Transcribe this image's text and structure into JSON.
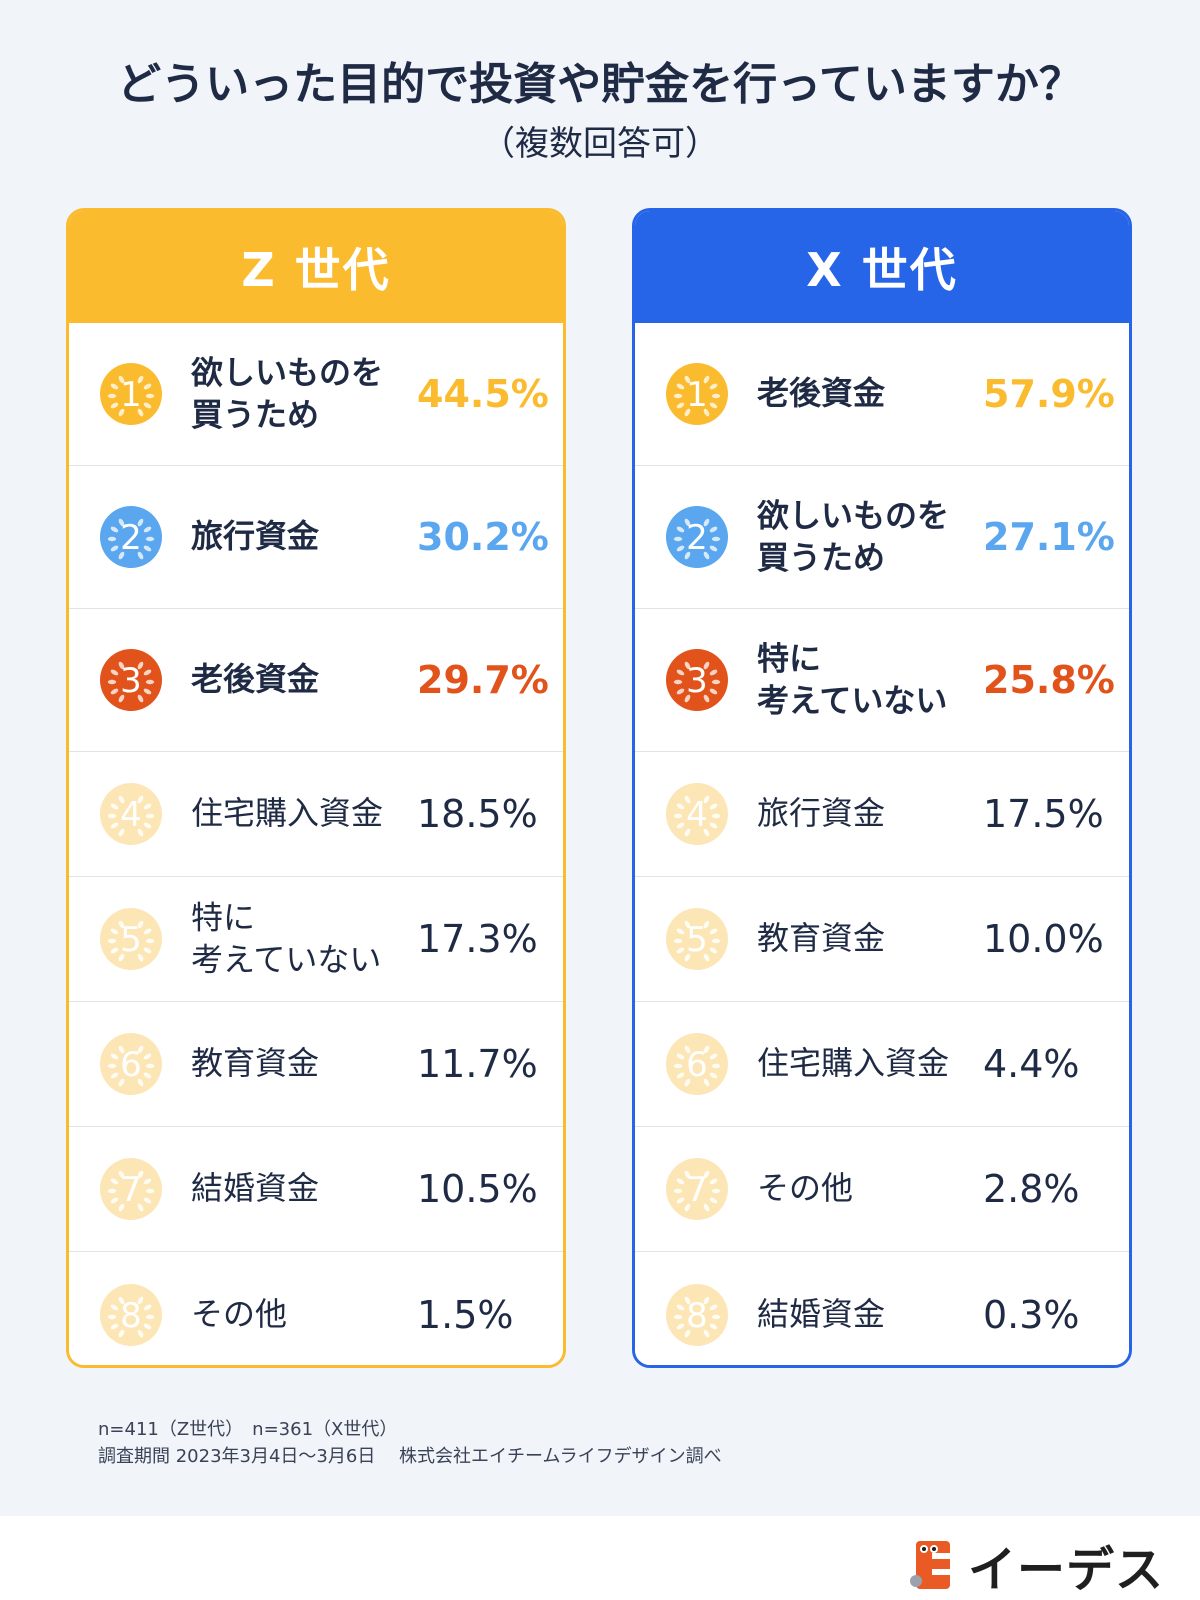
{
  "header": {
    "title": "どういった目的で投資や貯金を行っていますか？",
    "subtitle": "（複数回答可）"
  },
  "colors": {
    "gold": "#fbbb2f",
    "silver_blue": "#5aa6ef",
    "bronze": "#e1531b",
    "pale": "#fde6b6",
    "z_header": "#fbbb2f",
    "x_header": "#2765e8"
  },
  "chart_data": [
    {
      "type": "table",
      "title": "Z 世代",
      "rows": [
        {
          "rank": "1",
          "label": "欲しいものを\n買うため",
          "value": "44.5%",
          "num": 44.5
        },
        {
          "rank": "2",
          "label": "旅行資金",
          "value": "30.2%",
          "num": 30.2
        },
        {
          "rank": "3",
          "label": "老後資金",
          "value": "29.7%",
          "num": 29.7
        },
        {
          "rank": "4",
          "label": "住宅購入資金",
          "value": "18.5%",
          "num": 18.5
        },
        {
          "rank": "5",
          "label": "特に\n考えていない",
          "value": "17.3%",
          "num": 17.3
        },
        {
          "rank": "6",
          "label": "教育資金",
          "value": "11.7%",
          "num": 11.7
        },
        {
          "rank": "7",
          "label": "結婚資金",
          "value": "10.5%",
          "num": 10.5
        },
        {
          "rank": "8",
          "label": "その他",
          "value": "1.5%",
          "num": 1.5
        }
      ]
    },
    {
      "type": "table",
      "title": "X 世代",
      "rows": [
        {
          "rank": "1",
          "label": "老後資金",
          "value": "57.9%",
          "num": 57.9
        },
        {
          "rank": "2",
          "label": "欲しいものを\n買うため",
          "value": "27.1%",
          "num": 27.1
        },
        {
          "rank": "3",
          "label": "特に\n考えていない",
          "value": "25.8%",
          "num": 25.8
        },
        {
          "rank": "4",
          "label": "旅行資金",
          "value": "17.5%",
          "num": 17.5
        },
        {
          "rank": "5",
          "label": "教育資金",
          "value": "10.0%",
          "num": 10.0
        },
        {
          "rank": "6",
          "label": "住宅購入資金",
          "value": "4.4%",
          "num": 4.4
        },
        {
          "rank": "7",
          "label": "その他",
          "value": "2.8%",
          "num": 2.8
        },
        {
          "rank": "8",
          "label": "結婚資金",
          "value": "0.3%",
          "num": 0.3
        }
      ]
    }
  ],
  "footer": {
    "line1": "n=411（Z世代）　n=361（X世代）",
    "line2": "調査期間  2023年3月4日～3月6日　 株式会社エイチームライフデザイン調べ"
  },
  "logo": {
    "text": "イーデス",
    "icon": "edeas-logo-icon"
  }
}
